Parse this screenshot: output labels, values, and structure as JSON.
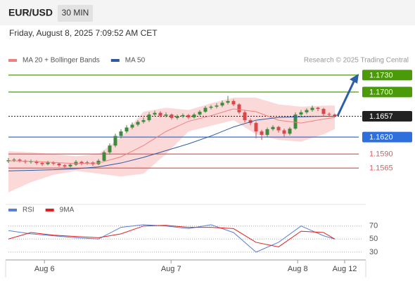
{
  "header": {
    "symbol": "EUR/USD",
    "interval": "30 MIN",
    "timestamp": "Friday, August 8, 2025 7:09:52 AM CET"
  },
  "chart_data": [
    {
      "type": "candlestick",
      "attribution": "Research © 2025 Trading Central",
      "open": [
        1.1577,
        1.1579,
        1.158,
        1.1578,
        1.1576,
        1.1577,
        1.1574,
        1.1572,
        1.1575,
        1.1573,
        1.157,
        1.1568,
        1.1571,
        1.1576,
        1.1573,
        1.1575,
        1.1572,
        1.1578,
        1.1593,
        1.1605,
        1.1622,
        1.163,
        1.1637,
        1.1642,
        1.1647,
        1.165,
        1.166,
        1.1663,
        1.1658,
        1.166,
        1.1654,
        1.1657,
        1.1659,
        1.1655,
        1.166,
        1.1665,
        1.1672,
        1.1674,
        1.1676,
        1.1681,
        1.1684,
        1.1678,
        1.1664,
        1.165,
        1.1645,
        1.163,
        1.1624,
        1.1634,
        1.1638,
        1.1632,
        1.1626,
        1.1635,
        1.166,
        1.1664,
        1.1668,
        1.1672,
        1.167,
        1.1661,
        1.166
      ],
      "high": [
        1.1583,
        1.1583,
        1.1582,
        1.158,
        1.158,
        1.1579,
        1.1576,
        1.1578,
        1.1577,
        1.1575,
        1.1572,
        1.1574,
        1.1579,
        1.1578,
        1.1578,
        1.1577,
        1.1581,
        1.1596,
        1.1609,
        1.1626,
        1.1634,
        1.1641,
        1.1646,
        1.165,
        1.1655,
        1.1664,
        1.1667,
        1.1666,
        1.1664,
        1.1662,
        1.166,
        1.1662,
        1.1661,
        1.1663,
        1.1668,
        1.1675,
        1.1677,
        1.168,
        1.1685,
        1.1693,
        1.1687,
        1.168,
        1.1667,
        1.1653,
        1.1648,
        1.1633,
        1.1637,
        1.1641,
        1.164,
        1.1635,
        1.1638,
        1.1664,
        1.1668,
        1.1671,
        1.1676,
        1.1674,
        1.1672,
        1.1664,
        1.1662
      ],
      "low": [
        1.1574,
        1.1576,
        1.1575,
        1.1573,
        1.1573,
        1.1571,
        1.1569,
        1.157,
        1.157,
        1.1567,
        1.1565,
        1.1566,
        1.1569,
        1.157,
        1.1571,
        1.1569,
        1.157,
        1.1576,
        1.159,
        1.1602,
        1.1618,
        1.1627,
        1.1634,
        1.1639,
        1.1644,
        1.1647,
        1.1657,
        1.1655,
        1.1655,
        1.1651,
        1.1651,
        1.1654,
        1.1652,
        1.1653,
        1.1658,
        1.1663,
        1.1669,
        1.1671,
        1.1673,
        1.1678,
        1.1675,
        1.1661,
        1.1646,
        1.1641,
        1.1618,
        1.1615,
        1.1621,
        1.1631,
        1.1628,
        1.1621,
        1.1623,
        1.1633,
        1.1657,
        1.1661,
        1.1665,
        1.1666,
        1.1658,
        1.1657,
        1.1655
      ],
      "close": [
        1.1579,
        1.158,
        1.1578,
        1.1576,
        1.1577,
        1.1574,
        1.1572,
        1.1575,
        1.1573,
        1.157,
        1.1568,
        1.1571,
        1.1576,
        1.1573,
        1.1575,
        1.1572,
        1.1578,
        1.1593,
        1.1605,
        1.1622,
        1.163,
        1.1637,
        1.1642,
        1.1647,
        1.165,
        1.166,
        1.1663,
        1.1658,
        1.166,
        1.1654,
        1.1657,
        1.1659,
        1.1655,
        1.166,
        1.1665,
        1.1672,
        1.1674,
        1.1676,
        1.1681,
        1.1684,
        1.1678,
        1.1664,
        1.165,
        1.1645,
        1.163,
        1.1624,
        1.1634,
        1.1638,
        1.1632,
        1.1626,
        1.1635,
        1.166,
        1.1664,
        1.1668,
        1.1672,
        1.167,
        1.1661,
        1.166,
        1.1657
      ],
      "up_color": "#3f8a3f",
      "down_color": "#d9474b",
      "series": [
        {
          "name": "MA 20 + Bollinger Bands",
          "color": "#f08080",
          "band_color": "#fcd9d9",
          "x": [
            0,
            4,
            8,
            12,
            16,
            20,
            24,
            28,
            32,
            36,
            40,
            44,
            48,
            52,
            56,
            58
          ],
          "values": [
            1.1578,
            1.1577,
            1.1575,
            1.1573,
            1.1574,
            1.1585,
            1.1605,
            1.163,
            1.1648,
            1.1658,
            1.167,
            1.1665,
            1.165,
            1.1645,
            1.1652,
            1.1655
          ],
          "upper": [
            1.1595,
            1.1593,
            1.159,
            1.1586,
            1.159,
            1.162,
            1.1665,
            1.1672,
            1.1668,
            1.168,
            1.169,
            1.169,
            1.1678,
            1.1674,
            1.1676,
            1.1676
          ],
          "lower": [
            1.1522,
            1.154,
            1.1553,
            1.156,
            1.1555,
            1.155,
            1.1555,
            1.159,
            1.163,
            1.164,
            1.165,
            1.1625,
            1.1615,
            1.1612,
            1.1625,
            1.1634
          ]
        },
        {
          "name": "MA 50",
          "color": "#2c5aa0",
          "x": [
            0,
            4,
            8,
            12,
            16,
            20,
            24,
            28,
            32,
            36,
            40,
            44,
            48,
            52,
            56,
            58
          ],
          "values": [
            1.156,
            1.1561,
            1.1562,
            1.1564,
            1.1567,
            1.1574,
            1.1584,
            1.1596,
            1.1608,
            1.1622,
            1.1638,
            1.165,
            1.1655,
            1.1656,
            1.1657,
            1.1657
          ]
        }
      ],
      "levels": [
        {
          "value": 1.173,
          "label": "1.1730",
          "color": "#4a9a0a",
          "boxed": true,
          "dotted": false
        },
        {
          "value": 1.17,
          "label": "1.1700",
          "color": "#4a9a0a",
          "boxed": true,
          "dotted": false
        },
        {
          "value": 1.1657,
          "label": "1.1657",
          "color": "#222222",
          "boxed": true,
          "dotted": true
        },
        {
          "value": 1.162,
          "label": "1.1620",
          "color": "#2f6fdb",
          "boxed": true,
          "dotted": false
        },
        {
          "value": 1.159,
          "label": "1.1590",
          "color": "#e05a5a",
          "boxed": false,
          "dotted": false
        },
        {
          "value": 1.1565,
          "label": "1.1565",
          "color": "#e05a5a",
          "boxed": false,
          "dotted": false
        }
      ],
      "xlim": [
        -0.5,
        63.5
      ],
      "ylim": [
        1.1508,
        1.1776
      ],
      "xticks": [
        {
          "value": 6.4,
          "label": "Aug 6"
        },
        {
          "value": 28.9,
          "label": "Aug 7"
        },
        {
          "value": 51.4,
          "label": "Aug 8"
        },
        {
          "value": 59.75,
          "label": "Aug 12"
        }
      ]
    },
    {
      "type": "line",
      "series": [
        {
          "name": "RSI",
          "color": "#5b7fd6",
          "x": [
            0,
            4,
            8,
            12,
            16,
            20,
            24,
            28,
            32,
            36,
            40,
            44,
            48,
            52,
            56,
            58
          ],
          "values": [
            63,
            58,
            55,
            52,
            50,
            68,
            72,
            70,
            66,
            72,
            60,
            30,
            45,
            70,
            55,
            50
          ]
        },
        {
          "name": "9MA",
          "color": "#e02020",
          "x": [
            0,
            4,
            8,
            12,
            16,
            20,
            24,
            28,
            32,
            36,
            40,
            44,
            48,
            52,
            56,
            58
          ],
          "values": [
            50,
            60,
            56,
            54,
            52,
            58,
            70,
            71,
            68,
            68,
            66,
            45,
            38,
            62,
            60,
            50
          ]
        }
      ],
      "xlim": [
        -0.5,
        63.5
      ],
      "ylim": [
        18,
        88
      ],
      "yticks": [
        70,
        50,
        30
      ],
      "grid": true
    }
  ]
}
